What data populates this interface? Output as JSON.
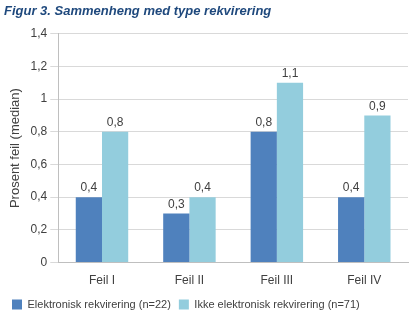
{
  "chart_data": {
    "type": "bar",
    "title": "Figur 3. Sammenheng med type rekvirering",
    "y_label": "Prosent feil (median)",
    "categories": [
      "Feil I",
      "Feil II",
      "Feil III",
      "Feil IV"
    ],
    "series": [
      {
        "name": "Elektronisk rekvirering (n=22)",
        "color": "#4f81bd",
        "values": [
          0.4,
          0.3,
          0.8,
          0.4
        ],
        "value_labels": [
          "0,4",
          "0,3",
          "0,8",
          "0,4"
        ]
      },
      {
        "name": "Ikke elektronisk rekvirering (n=71)",
        "color": "#93cddd",
        "values": [
          0.8,
          0.4,
          1.1,
          0.9
        ],
        "value_labels": [
          "0,8",
          "0,4",
          "1,1",
          "0,9"
        ]
      }
    ],
    "ylim": [
      0,
      1.4
    ],
    "yticks": [
      0,
      {
        "value": 0.2,
        "label": "0,2"
      },
      {
        "value": 0.4,
        "label": "0,4"
      },
      {
        "value": 0.6,
        "label": "0,6"
      },
      {
        "value": 0.8,
        "label": "0,8"
      },
      {
        "value": 1,
        "label": "1"
      },
      {
        "value": 1.2,
        "label": "1,2"
      },
      {
        "value": 1.4,
        "label": "1,4"
      }
    ],
    "grid": true,
    "legend": "bottom",
    "data_labels": true
  }
}
